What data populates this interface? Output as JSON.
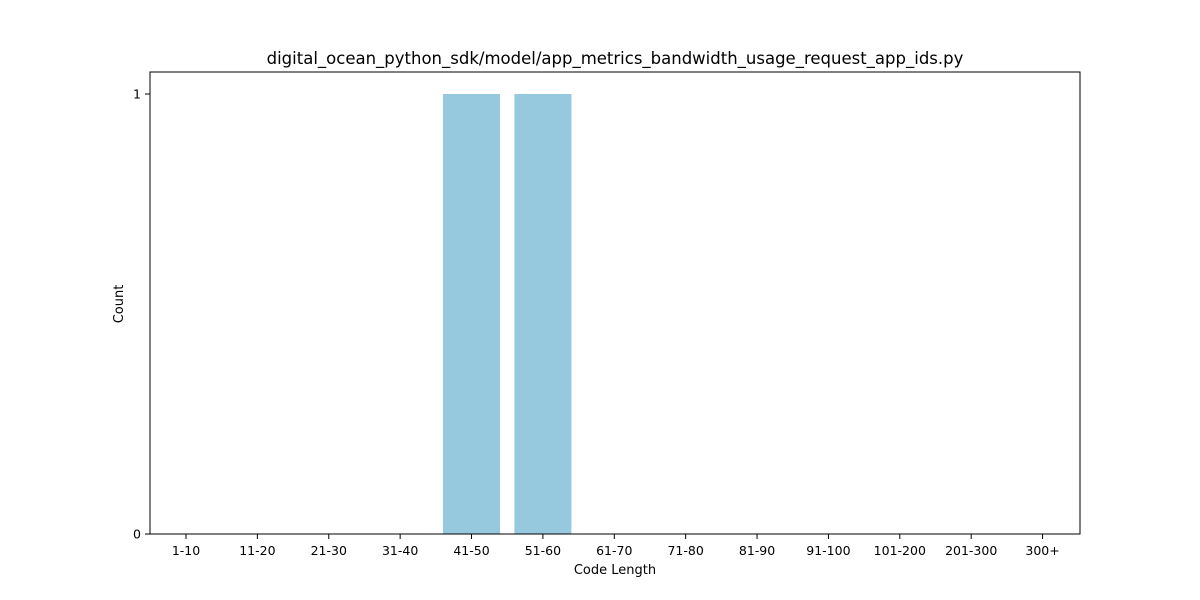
{
  "chart_data": {
    "type": "bar",
    "title": "digital_ocean_python_sdk/model/app_metrics_bandwidth_usage_request_app_ids.py",
    "xlabel": "Code Length",
    "ylabel": "Count",
    "categories": [
      "1-10",
      "11-20",
      "21-30",
      "31-40",
      "41-50",
      "51-60",
      "61-70",
      "71-80",
      "81-90",
      "91-100",
      "101-200",
      "201-300",
      "300+"
    ],
    "values": [
      0,
      0,
      0,
      0,
      1,
      1,
      0,
      0,
      0,
      0,
      0,
      0,
      0
    ],
    "ylim": [
      0,
      1
    ],
    "yticks": [
      "0",
      "1"
    ],
    "grid": false,
    "bar_color": "#96c9de"
  }
}
